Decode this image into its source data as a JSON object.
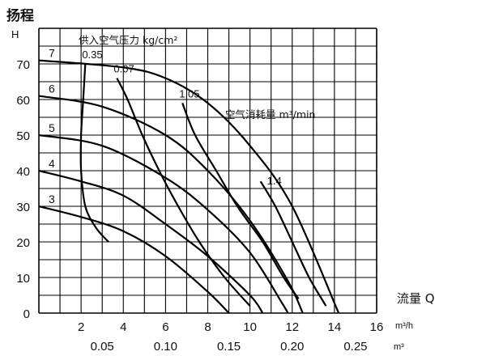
{
  "chart_data": {
    "type": "line",
    "y_axis": {
      "label": "扬程",
      "unit": "H",
      "ticks": [
        0,
        10,
        20,
        30,
        40,
        50,
        60,
        70
      ],
      "range": [
        0,
        80
      ]
    },
    "x_axis": {
      "label": "流量 Q",
      "unit": "m³/h",
      "ticks": [
        2,
        4,
        6,
        8,
        10,
        12,
        14,
        16
      ],
      "range": [
        0,
        16
      ]
    },
    "x_axis2": {
      "unit": "m³",
      "ticks": [
        "0.05",
        "0.10",
        "0.15",
        "0.20",
        "0.25"
      ],
      "values": [
        0.05,
        0.1,
        0.15,
        0.2,
        0.25
      ]
    },
    "grid": true,
    "head_curves": [
      {
        "label": "7",
        "points": [
          [
            0,
            71
          ],
          [
            4,
            69
          ],
          [
            6,
            66
          ],
          [
            8,
            59
          ],
          [
            10,
            47
          ],
          [
            12,
            30
          ],
          [
            14.2,
            0
          ]
        ]
      },
      {
        "label": "6",
        "points": [
          [
            0,
            61
          ],
          [
            3,
            58
          ],
          [
            6,
            50
          ],
          [
            8,
            40
          ],
          [
            10,
            26
          ],
          [
            11.8,
            9
          ],
          [
            12.5,
            0
          ]
        ]
      },
      {
        "label": "5",
        "points": [
          [
            0,
            50
          ],
          [
            3,
            47
          ],
          [
            6,
            38
          ],
          [
            8,
            29
          ],
          [
            10,
            17
          ],
          [
            11.5,
            3
          ],
          [
            11.8,
            0
          ]
        ]
      },
      {
        "label": "4",
        "points": [
          [
            0,
            40
          ],
          [
            2,
            37
          ],
          [
            4,
            33
          ],
          [
            6,
            25
          ],
          [
            8,
            16
          ],
          [
            10,
            5
          ],
          [
            10.6,
            0
          ]
        ]
      },
      {
        "label": "3",
        "points": [
          [
            0,
            30
          ],
          [
            2,
            27
          ],
          [
            4,
            23
          ],
          [
            6,
            16
          ],
          [
            8,
            6
          ],
          [
            9,
            0
          ]
        ]
      }
    ],
    "air_curves": [
      {
        "label": "0.35",
        "points": [
          [
            2.2,
            70
          ],
          [
            2.1,
            60
          ],
          [
            2.0,
            50
          ],
          [
            2.0,
            40
          ],
          [
            2.2,
            30
          ],
          [
            2.7,
            24
          ],
          [
            3.3,
            20
          ]
        ]
      },
      {
        "label": "0.07",
        "points": [
          [
            3.7,
            66
          ],
          [
            4.2,
            60
          ],
          [
            4.9,
            50
          ],
          [
            5.7,
            40
          ],
          [
            6.6,
            30
          ],
          [
            7.6,
            20
          ],
          [
            8.8,
            10
          ],
          [
            10.0,
            2
          ]
        ]
      },
      {
        "label": "1.05",
        "points": [
          [
            6.8,
            59
          ],
          [
            7.4,
            50
          ],
          [
            8.4,
            40
          ],
          [
            9.4,
            30
          ],
          [
            10.6,
            20
          ],
          [
            11.6,
            10
          ],
          [
            12.3,
            4
          ]
        ]
      },
      {
        "label": "1.4",
        "points": [
          [
            10.5,
            37
          ],
          [
            11.2,
            30
          ],
          [
            12.0,
            20
          ],
          [
            12.8,
            10
          ],
          [
            13.6,
            2
          ]
        ]
      }
    ],
    "legend_air_pressure": "供入空气压力 kg/cm²",
    "legend_air_consumption": "空气消耗量 m³/min"
  }
}
